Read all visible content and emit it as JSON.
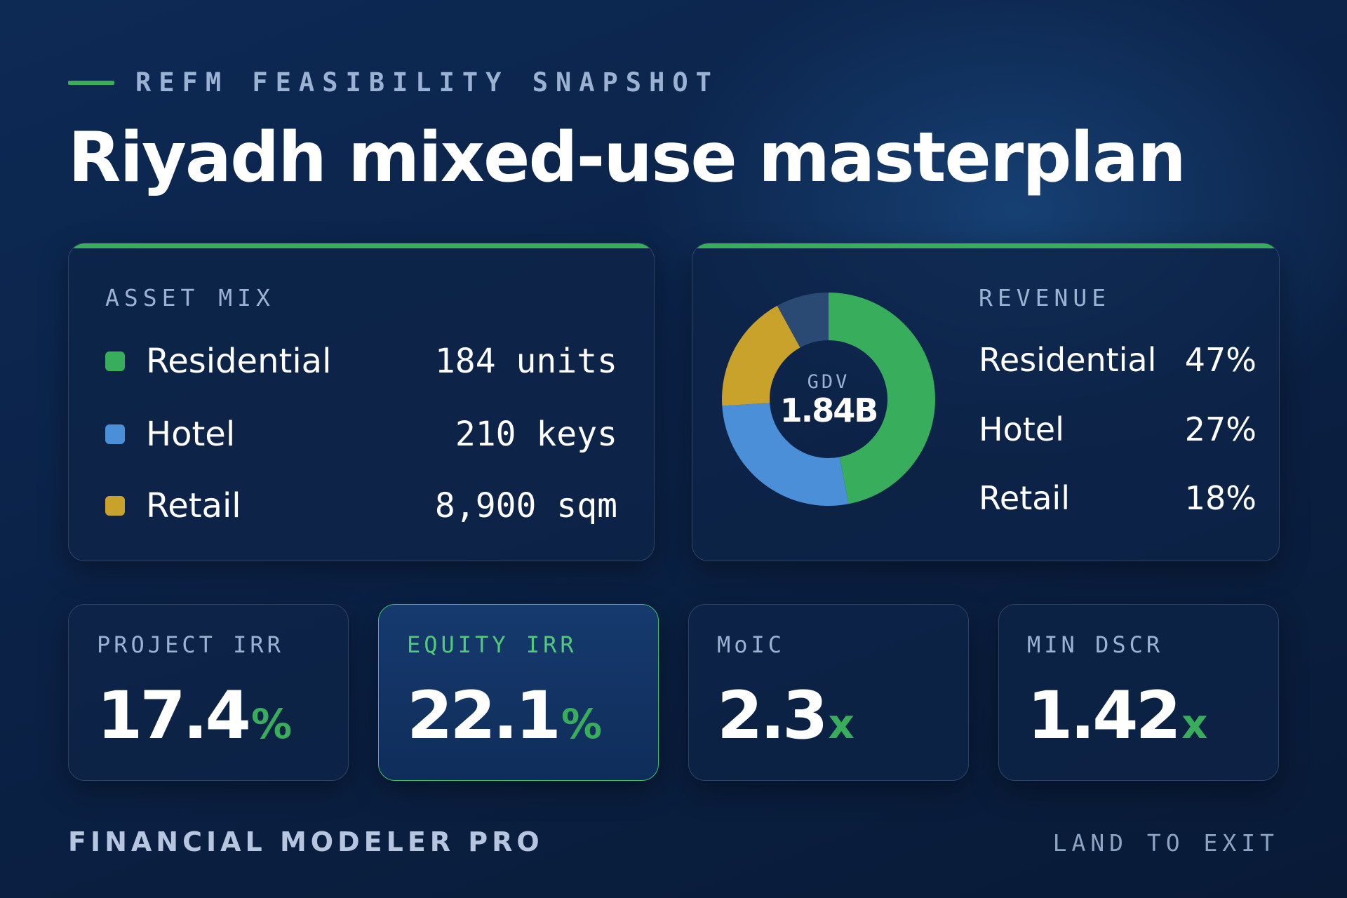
{
  "header": {
    "eyebrow": "REFM FEASIBILITY SNAPSHOT",
    "title": "Riyadh mixed-use masterplan"
  },
  "colors": {
    "accent": "#38ad5c",
    "residential": "#38ad5c",
    "hotel": "#4a8fd8",
    "retail": "#c9a22b",
    "other": "#2a4a73"
  },
  "asset_mix": {
    "label": "ASSET MIX",
    "items": [
      {
        "name": "Residential",
        "value": "184 units",
        "color": "#38ad5c"
      },
      {
        "name": "Hotel",
        "value": "210 keys",
        "color": "#4a8fd8"
      },
      {
        "name": "Retail",
        "value": "8,900 sqm",
        "color": "#c9a22b"
      }
    ]
  },
  "revenue": {
    "label": "REVENUE",
    "center_label": "GDV",
    "center_value": "1.84B",
    "items": [
      {
        "name": "Residential",
        "pct": "47%"
      },
      {
        "name": "Hotel",
        "pct": "27%"
      },
      {
        "name": "Retail",
        "pct": "18%"
      }
    ]
  },
  "chart_data": {
    "type": "pie",
    "categories": [
      "Residential",
      "Hotel",
      "Retail",
      ""
    ],
    "values": [
      47,
      27,
      18,
      8
    ],
    "colors": [
      "#38ad5c",
      "#4a8fd8",
      "#c9a22b",
      "#2a4a73"
    ],
    "title": "REVENUE",
    "donut": true,
    "center_text": "GDV 1.84B"
  },
  "kpis": [
    {
      "label": "PROJECT IRR",
      "value": "17.4",
      "unit": "%",
      "highlighted": false
    },
    {
      "label": "EQUITY IRR",
      "value": "22.1",
      "unit": "%",
      "highlighted": true
    },
    {
      "label": "MoIC",
      "value": "2.3",
      "unit": "x",
      "highlighted": false
    },
    {
      "label": "MIN DSCR",
      "value": "1.42",
      "unit": "x",
      "highlighted": false
    }
  ],
  "footer": {
    "brand": "FINANCIAL MODELER PRO",
    "tagline": "LAND TO EXIT"
  }
}
